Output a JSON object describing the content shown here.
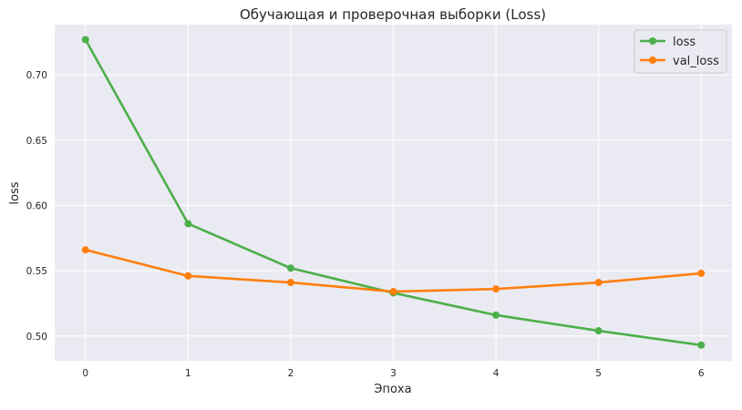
{
  "chart_data": {
    "type": "line",
    "title": "Обучающая и проверочная выборки (Loss)",
    "xlabel": "Эпоха",
    "ylabel": "loss",
    "x": [
      0,
      1,
      2,
      3,
      4,
      5,
      6
    ],
    "xticks": [
      "0",
      "1",
      "2",
      "3",
      "4",
      "5",
      "6"
    ],
    "yticks": [
      "0.50",
      "0.55",
      "0.60",
      "0.65",
      "0.70"
    ],
    "xlim": [
      -0.3,
      6.3
    ],
    "ylim": [
      0.481,
      0.7385
    ],
    "grid": true,
    "legend_position": "upper right",
    "series": [
      {
        "name": "loss",
        "color": "#4daf4a",
        "values": [
          0.727,
          0.586,
          0.552,
          0.533,
          0.516,
          0.504,
          0.493
        ]
      },
      {
        "name": "val_loss",
        "color": "#ff7f0e",
        "values": [
          0.566,
          0.546,
          0.541,
          0.534,
          0.536,
          0.541,
          0.548
        ]
      }
    ]
  },
  "colors": {
    "plot_background": "#eaeaf2",
    "grid": "#ffffff",
    "text": "#262626"
  }
}
